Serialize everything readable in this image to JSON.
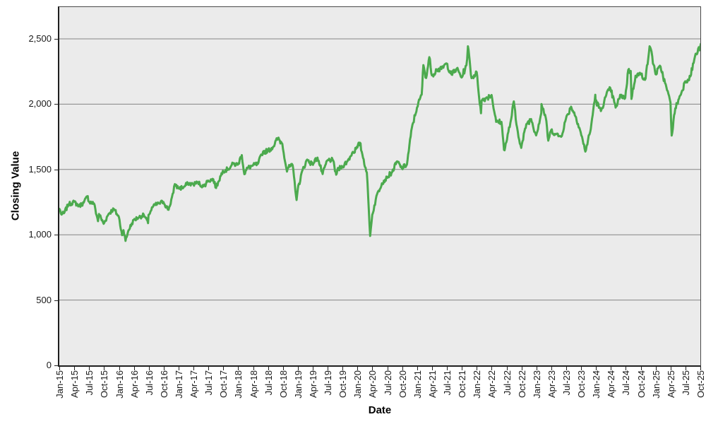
{
  "chart_data": {
    "type": "line",
    "title": "",
    "xlabel": "Date",
    "ylabel": "Closing Value",
    "legend_position": "none",
    "grid": true,
    "plot_bg": "#ebebeb",
    "gridline_color": "#858585",
    "axis_color": "#222222",
    "ylim": [
      0,
      2743
    ],
    "y_tick_values": [
      0,
      500,
      1000,
      1500,
      2000,
      2500
    ],
    "y_tick_labels": [
      "0",
      "500",
      "1,000",
      "1,500",
      "2,000",
      "2,500"
    ],
    "x_tick_labels": [
      "Jan-15",
      "Apr-15",
      "Jul-15",
      "Oct-15",
      "Jan-16",
      "Apr-16",
      "Jul-16",
      "Oct-16",
      "Jan-17",
      "Apr-17",
      "Jul-17",
      "Oct-17",
      "Jan-18",
      "Apr-18",
      "Jul-18",
      "Oct-18",
      "Jan-19",
      "Apr-19",
      "Jul-19",
      "Oct-19",
      "Jan-20",
      "Apr-20",
      "Jul-20",
      "Oct-20",
      "Jan-21",
      "Apr-21",
      "Jul-21",
      "Oct-21",
      "Jan-22",
      "Apr-22",
      "Jul-22",
      "Oct-22",
      "Jan-23",
      "Apr-23",
      "Jul-23",
      "Oct-23",
      "Jan-24",
      "Apr-24",
      "Jul-24",
      "Oct-24",
      "Jan-25",
      "Apr-25",
      "Jul-25",
      "Oct-25"
    ],
    "series": [
      {
        "name": "Closing Value",
        "color": "#4caa4e",
        "stroke_width": 3,
        "points": [
          [
            "2015-01-02",
            1198
          ],
          [
            "2015-01-15",
            1154
          ],
          [
            "2015-01-30",
            1165
          ],
          [
            "2015-02-27",
            1233
          ],
          [
            "2015-03-31",
            1253
          ],
          [
            "2015-04-30",
            1220
          ],
          [
            "2015-05-29",
            1246
          ],
          [
            "2015-06-23",
            1296
          ],
          [
            "2015-06-30",
            1254
          ],
          [
            "2015-07-31",
            1239
          ],
          [
            "2015-08-25",
            1104
          ],
          [
            "2015-08-31",
            1159
          ],
          [
            "2015-09-29",
            1084
          ],
          [
            "2015-10-30",
            1162
          ],
          [
            "2015-11-30",
            1198
          ],
          [
            "2015-12-31",
            1136
          ],
          [
            "2016-01-20",
            997
          ],
          [
            "2016-01-29",
            1035
          ],
          [
            "2016-02-11",
            953
          ],
          [
            "2016-02-29",
            1034
          ],
          [
            "2016-03-31",
            1114
          ],
          [
            "2016-04-29",
            1131
          ],
          [
            "2016-05-31",
            1154
          ],
          [
            "2016-06-27",
            1089
          ],
          [
            "2016-06-30",
            1152
          ],
          [
            "2016-07-29",
            1220
          ],
          [
            "2016-08-31",
            1240
          ],
          [
            "2016-09-30",
            1251
          ],
          [
            "2016-10-31",
            1191
          ],
          [
            "2016-11-30",
            1322
          ],
          [
            "2016-12-09",
            1388
          ],
          [
            "2016-12-30",
            1357
          ],
          [
            "2017-01-31",
            1362
          ],
          [
            "2017-02-28",
            1394
          ],
          [
            "2017-03-31",
            1386
          ],
          [
            "2017-04-28",
            1400
          ],
          [
            "2017-05-31",
            1370
          ],
          [
            "2017-06-30",
            1415
          ],
          [
            "2017-07-31",
            1425
          ],
          [
            "2017-08-18",
            1358
          ],
          [
            "2017-08-31",
            1405
          ],
          [
            "2017-09-29",
            1490
          ],
          [
            "2017-10-31",
            1503
          ],
          [
            "2017-11-30",
            1544
          ],
          [
            "2017-12-29",
            1536
          ],
          [
            "2018-01-23",
            1610
          ],
          [
            "2018-02-08",
            1464
          ],
          [
            "2018-02-28",
            1512
          ],
          [
            "2018-03-29",
            1529
          ],
          [
            "2018-04-30",
            1542
          ],
          [
            "2018-05-31",
            1634
          ],
          [
            "2018-06-29",
            1643
          ],
          [
            "2018-07-31",
            1671
          ],
          [
            "2018-08-31",
            1740
          ],
          [
            "2018-09-28",
            1696
          ],
          [
            "2018-10-26",
            1484
          ],
          [
            "2018-10-31",
            1511
          ],
          [
            "2018-11-30",
            1533
          ],
          [
            "2018-12-24",
            1266
          ],
          [
            "2018-12-31",
            1349
          ],
          [
            "2019-01-31",
            1500
          ],
          [
            "2019-02-28",
            1575
          ],
          [
            "2019-03-29",
            1540
          ],
          [
            "2019-04-30",
            1591
          ],
          [
            "2019-05-31",
            1465
          ],
          [
            "2019-06-28",
            1567
          ],
          [
            "2019-07-31",
            1577
          ],
          [
            "2019-08-23",
            1460
          ],
          [
            "2019-08-30",
            1495
          ],
          [
            "2019-09-30",
            1523
          ],
          [
            "2019-10-31",
            1562
          ],
          [
            "2019-11-29",
            1625
          ],
          [
            "2019-12-31",
            1668
          ],
          [
            "2020-01-16",
            1705
          ],
          [
            "2020-01-31",
            1614
          ],
          [
            "2020-02-28",
            1476
          ],
          [
            "2020-03-18",
            991
          ],
          [
            "2020-03-31",
            1153
          ],
          [
            "2020-04-30",
            1311
          ],
          [
            "2020-05-29",
            1394
          ],
          [
            "2020-06-30",
            1441
          ],
          [
            "2020-07-31",
            1480
          ],
          [
            "2020-08-31",
            1562
          ],
          [
            "2020-09-30",
            1508
          ],
          [
            "2020-10-30",
            1538
          ],
          [
            "2020-11-30",
            1820
          ],
          [
            "2020-12-31",
            1975
          ],
          [
            "2021-01-29",
            2073
          ],
          [
            "2021-02-09",
            2299
          ],
          [
            "2021-02-26",
            2201
          ],
          [
            "2021-03-15",
            2360
          ],
          [
            "2021-03-31",
            2221
          ],
          [
            "2021-04-30",
            2266
          ],
          [
            "2021-05-28",
            2269
          ],
          [
            "2021-06-30",
            2311
          ],
          [
            "2021-07-30",
            2226
          ],
          [
            "2021-08-31",
            2273
          ],
          [
            "2021-09-30",
            2204
          ],
          [
            "2021-10-29",
            2297
          ],
          [
            "2021-11-08",
            2443
          ],
          [
            "2021-11-30",
            2199
          ],
          [
            "2021-12-31",
            2245
          ],
          [
            "2022-01-27",
            1931
          ],
          [
            "2022-01-31",
            2028
          ],
          [
            "2022-02-28",
            2048
          ],
          [
            "2022-03-31",
            2070
          ],
          [
            "2022-04-29",
            1864
          ],
          [
            "2022-05-31",
            1864
          ],
          [
            "2022-06-16",
            1650
          ],
          [
            "2022-06-30",
            1708
          ],
          [
            "2022-07-29",
            1885
          ],
          [
            "2022-08-15",
            2021
          ],
          [
            "2022-08-31",
            1844
          ],
          [
            "2022-09-30",
            1665
          ],
          [
            "2022-10-31",
            1847
          ],
          [
            "2022-11-30",
            1886
          ],
          [
            "2022-12-30",
            1761
          ],
          [
            "2023-01-31",
            1932
          ],
          [
            "2023-02-02",
            2001
          ],
          [
            "2023-02-28",
            1897
          ],
          [
            "2023-03-13",
            1721
          ],
          [
            "2023-03-31",
            1802
          ],
          [
            "2023-04-28",
            1769
          ],
          [
            "2023-05-31",
            1750
          ],
          [
            "2023-06-30",
            1888
          ],
          [
            "2023-07-31",
            1981
          ],
          [
            "2023-08-31",
            1900
          ],
          [
            "2023-09-29",
            1785
          ],
          [
            "2023-10-27",
            1637
          ],
          [
            "2023-11-30",
            1809
          ],
          [
            "2023-12-27",
            2072
          ],
          [
            "2023-12-29",
            2027
          ],
          [
            "2024-01-31",
            1947
          ],
          [
            "2024-02-29",
            2055
          ],
          [
            "2024-03-28",
            2124
          ],
          [
            "2024-04-30",
            1974
          ],
          [
            "2024-05-31",
            2070
          ],
          [
            "2024-06-28",
            2048
          ],
          [
            "2024-07-16",
            2263
          ],
          [
            "2024-07-31",
            2254
          ],
          [
            "2024-08-05",
            2040
          ],
          [
            "2024-08-30",
            2218
          ],
          [
            "2024-09-30",
            2230
          ],
          [
            "2024-10-31",
            2197
          ],
          [
            "2024-11-25",
            2443
          ],
          [
            "2024-11-29",
            2435
          ],
          [
            "2024-12-31",
            2230
          ],
          [
            "2025-01-31",
            2288
          ],
          [
            "2025-02-28",
            2163
          ],
          [
            "2025-03-31",
            2012
          ],
          [
            "2025-04-08",
            1760
          ],
          [
            "2025-04-30",
            1968
          ],
          [
            "2025-05-30",
            2066
          ],
          [
            "2025-06-30",
            2175
          ],
          [
            "2025-07-31",
            2212
          ],
          [
            "2025-08-29",
            2366
          ],
          [
            "2025-09-30",
            2436
          ],
          [
            "2025-10-24",
            2478
          ]
        ]
      }
    ]
  }
}
